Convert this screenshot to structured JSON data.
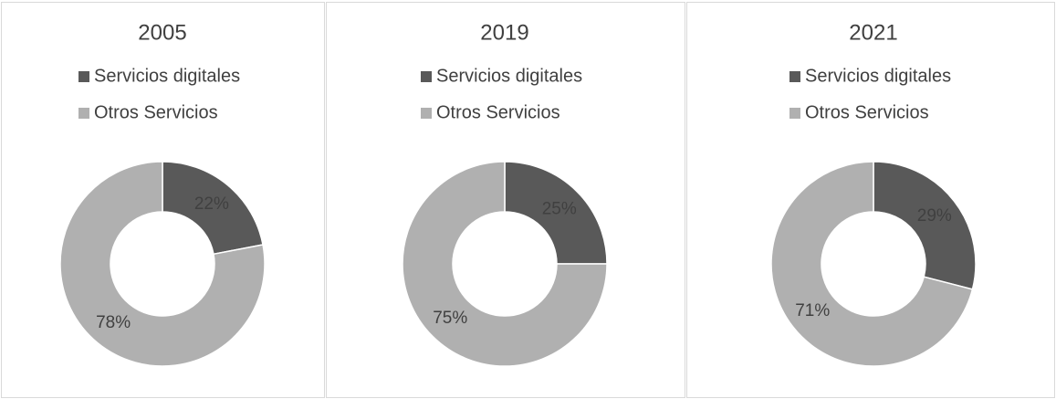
{
  "chart_data": [
    {
      "type": "donut",
      "title": "2005",
      "categories": [
        "Servicios digitales",
        "Otros Servicios"
      ],
      "values": [
        22,
        78
      ],
      "value_labels": [
        "22%",
        "78%"
      ],
      "colors": [
        "#595959",
        "#b0b0b0"
      ]
    },
    {
      "type": "donut",
      "title": "2019",
      "categories": [
        "Servicios digitales",
        "Otros Servicios"
      ],
      "values": [
        25,
        75
      ],
      "value_labels": [
        "25%",
        "75%"
      ],
      "colors": [
        "#595959",
        "#b0b0b0"
      ]
    },
    {
      "type": "donut",
      "title": "2021",
      "categories": [
        "Servicios digitales",
        "Otros Servicios"
      ],
      "values": [
        29,
        71
      ],
      "value_labels": [
        "29%",
        "71%"
      ],
      "colors": [
        "#595959",
        "#b0b0b0"
      ]
    }
  ]
}
